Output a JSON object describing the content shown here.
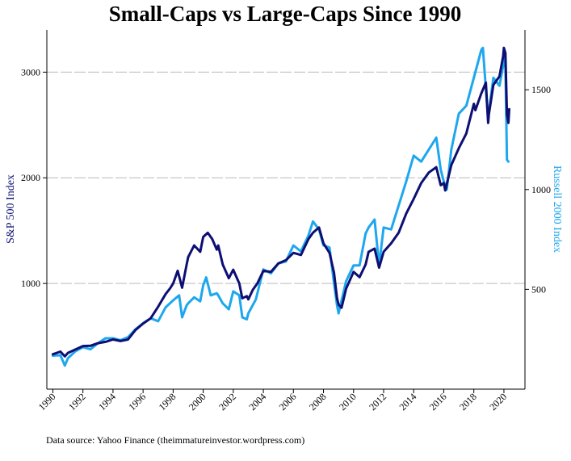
{
  "chart_data": {
    "type": "line",
    "title": "Small-Caps vs Large-Caps Since 1990",
    "ylabel_left": "S&P 500 Index",
    "ylabel_right": "Russell 2000 Index",
    "source": "Data source: Yahoo Finance (theimmatureinvestor.wordpress.com)",
    "x_ticks": [
      "1990",
      "1992",
      "1994",
      "1996",
      "1998",
      "2000",
      "2002",
      "2004",
      "2006",
      "2008",
      "2010",
      "2012",
      "2014",
      "2016",
      "2018",
      "2020"
    ],
    "y_left_ticks": [
      "1000",
      "2000",
      "3000"
    ],
    "y_right_ticks": [
      "500",
      "1000",
      "1500"
    ],
    "xlim": [
      1989.6,
      2021.4
    ],
    "ylim_left": [
      0,
      3400
    ],
    "ylim_right": [
      0,
      1800
    ],
    "grid": "horizontal",
    "colors": {
      "sp500": "#0d0f73",
      "russell": "#1ea7ee",
      "grid": "#c8c8c8"
    },
    "series": [
      {
        "name": "S&P 500 Index",
        "axis": "left",
        "points": [
          [
            1990,
            330
          ],
          [
            1990.5,
            355
          ],
          [
            1990.8,
            310
          ],
          [
            1991,
            343
          ],
          [
            1991.5,
            375
          ],
          [
            1992,
            408
          ],
          [
            1992.5,
            410
          ],
          [
            1993,
            435
          ],
          [
            1993.5,
            448
          ],
          [
            1994,
            470
          ],
          [
            1994.5,
            455
          ],
          [
            1995,
            470
          ],
          [
            1995.5,
            560
          ],
          [
            1996,
            620
          ],
          [
            1996.5,
            670
          ],
          [
            1997,
            780
          ],
          [
            1997.5,
            900
          ],
          [
            1997.8,
            955
          ],
          [
            1998,
            1000
          ],
          [
            1998.3,
            1120
          ],
          [
            1998.6,
            960
          ],
          [
            1998.9,
            1180
          ],
          [
            1999,
            1250
          ],
          [
            1999.4,
            1360
          ],
          [
            1999.8,
            1300
          ],
          [
            2000,
            1440
          ],
          [
            2000.3,
            1480
          ],
          [
            2000.6,
            1420
          ],
          [
            2000.9,
            1320
          ],
          [
            2001,
            1360
          ],
          [
            2001.3,
            1180
          ],
          [
            2001.7,
            1050
          ],
          [
            2002,
            1130
          ],
          [
            2002.4,
            1000
          ],
          [
            2002.6,
            860
          ],
          [
            2002.9,
            880
          ],
          [
            2003,
            850
          ],
          [
            2003.3,
            940
          ],
          [
            2003.6,
            1000
          ],
          [
            2004,
            1120
          ],
          [
            2004.5,
            1110
          ],
          [
            2005,
            1190
          ],
          [
            2005.5,
            1220
          ],
          [
            2006,
            1290
          ],
          [
            2006.5,
            1270
          ],
          [
            2007,
            1420
          ],
          [
            2007.3,
            1480
          ],
          [
            2007.7,
            1530
          ],
          [
            2008,
            1380
          ],
          [
            2008.4,
            1290
          ],
          [
            2008.7,
            1100
          ],
          [
            2008.9,
            860
          ],
          [
            2009,
            800
          ],
          [
            2009.2,
            770
          ],
          [
            2009.5,
            950
          ],
          [
            2010,
            1110
          ],
          [
            2010.4,
            1060
          ],
          [
            2010.8,
            1180
          ],
          [
            2011,
            1300
          ],
          [
            2011.4,
            1330
          ],
          [
            2011.7,
            1150
          ],
          [
            2012,
            1300
          ],
          [
            2012.5,
            1380
          ],
          [
            2013,
            1480
          ],
          [
            2013.5,
            1660
          ],
          [
            2014,
            1800
          ],
          [
            2014.5,
            1950
          ],
          [
            2015,
            2050
          ],
          [
            2015.5,
            2100
          ],
          [
            2015.8,
            1930
          ],
          [
            2016,
            1950
          ],
          [
            2016.1,
            1880
          ],
          [
            2016.5,
            2120
          ],
          [
            2017,
            2280
          ],
          [
            2017.5,
            2420
          ],
          [
            2018,
            2700
          ],
          [
            2018.1,
            2640
          ],
          [
            2018.5,
            2800
          ],
          [
            2018.8,
            2900
          ],
          [
            2018.95,
            2520
          ],
          [
            2019,
            2600
          ],
          [
            2019.3,
            2880
          ],
          [
            2019.7,
            2960
          ],
          [
            2019.95,
            3150
          ],
          [
            2020,
            3230
          ],
          [
            2020.1,
            3180
          ],
          [
            2020.2,
            2600
          ],
          [
            2020.3,
            2520
          ],
          [
            2020.35,
            2650
          ]
        ]
      },
      {
        "name": "Russell 2000 Index",
        "axis": "right",
        "points": [
          [
            1990,
            168
          ],
          [
            1990.5,
            170
          ],
          [
            1990.8,
            118
          ],
          [
            1991,
            155
          ],
          [
            1991.5,
            190
          ],
          [
            1992,
            210
          ],
          [
            1992.5,
            200
          ],
          [
            1993,
            230
          ],
          [
            1993.5,
            255
          ],
          [
            1994,
            255
          ],
          [
            1994.5,
            245
          ],
          [
            1995,
            260
          ],
          [
            1995.5,
            300
          ],
          [
            1996,
            330
          ],
          [
            1996.5,
            355
          ],
          [
            1997,
            340
          ],
          [
            1997.5,
            410
          ],
          [
            1998,
            445
          ],
          [
            1998.4,
            470
          ],
          [
            1998.6,
            360
          ],
          [
            1998.9,
            420
          ],
          [
            1999,
            430
          ],
          [
            1999.4,
            460
          ],
          [
            1999.8,
            440
          ],
          [
            2000,
            520
          ],
          [
            2000.2,
            560
          ],
          [
            2000.5,
            470
          ],
          [
            2000.9,
            480
          ],
          [
            2001,
            470
          ],
          [
            2001.3,
            430
          ],
          [
            2001.7,
            400
          ],
          [
            2002,
            490
          ],
          [
            2002.4,
            470
          ],
          [
            2002.6,
            360
          ],
          [
            2002.9,
            350
          ],
          [
            2003,
            380
          ],
          [
            2003.5,
            450
          ],
          [
            2004,
            600
          ],
          [
            2004.5,
            580
          ],
          [
            2005,
            630
          ],
          [
            2005.5,
            640
          ],
          [
            2006,
            720
          ],
          [
            2006.5,
            690
          ],
          [
            2007,
            770
          ],
          [
            2007.3,
            840
          ],
          [
            2007.7,
            800
          ],
          [
            2008,
            720
          ],
          [
            2008.4,
            710
          ],
          [
            2008.7,
            530
          ],
          [
            2008.9,
            420
          ],
          [
            2009,
            380
          ],
          [
            2009.5,
            540
          ],
          [
            2010,
            620
          ],
          [
            2010.4,
            620
          ],
          [
            2010.8,
            780
          ],
          [
            2011,
            810
          ],
          [
            2011.4,
            850
          ],
          [
            2011.7,
            620
          ],
          [
            2012,
            810
          ],
          [
            2012.5,
            800
          ],
          [
            2013,
            920
          ],
          [
            2013.5,
            1040
          ],
          [
            2014,
            1170
          ],
          [
            2014.5,
            1140
          ],
          [
            2015,
            1200
          ],
          [
            2015.5,
            1260
          ],
          [
            2015.8,
            1100
          ],
          [
            2016,
            1040
          ],
          [
            2016.2,
            1000
          ],
          [
            2016.5,
            1200
          ],
          [
            2017,
            1380
          ],
          [
            2017.5,
            1420
          ],
          [
            2018,
            1560
          ],
          [
            2018.5,
            1700
          ],
          [
            2018.6,
            1710
          ],
          [
            2018.95,
            1350
          ],
          [
            2019,
            1390
          ],
          [
            2019.3,
            1560
          ],
          [
            2019.7,
            1520
          ],
          [
            2019.95,
            1620
          ],
          [
            2020,
            1680
          ],
          [
            2020.1,
            1620
          ],
          [
            2020.2,
            1150
          ],
          [
            2020.3,
            1140
          ]
        ]
      }
    ]
  }
}
